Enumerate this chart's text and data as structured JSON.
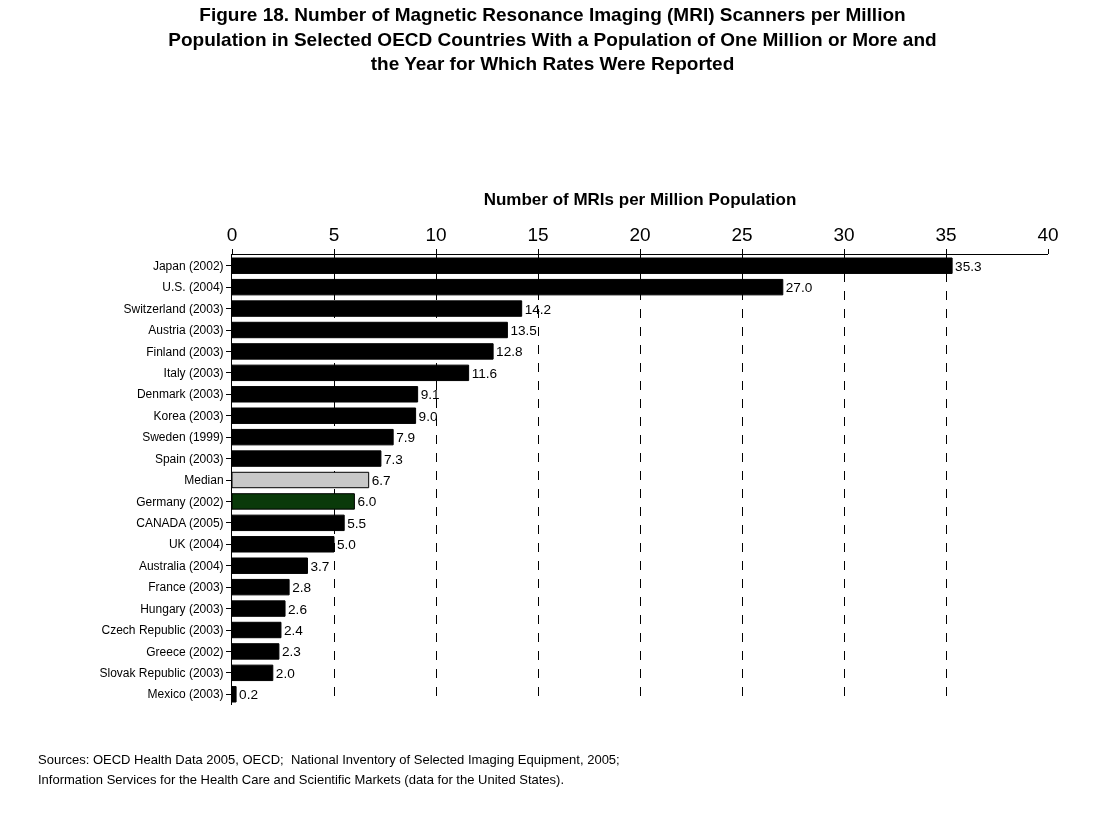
{
  "chart_data": {
    "type": "bar",
    "orientation": "horizontal",
    "title": "Figure 18. Number of Magnetic Resonance Imaging (MRI) Scanners per Million Population in Selected OECD Countries With a Population of One Million or More and the Year for Which Rates Were Reported",
    "xlabel": "Number of MRIs per Million Population",
    "categories": [
      "Japan (2002)",
      "U.S. (2004)",
      "Switzerland (2003)",
      "Austria (2003)",
      "Finland (2003)",
      "Italy (2003)",
      "Denmark (2003)",
      "Korea (2003)",
      "Sweden (1999)",
      "Spain (2003)",
      "Median",
      "Germany (2002)",
      "CANADA (2005)",
      "UK (2004)",
      "Australia (2004)",
      "France (2003)",
      "Hungary (2003)",
      "Czech Republic (2003)",
      "Greece (2002)",
      "Slovak Republic (2003)",
      "Mexico (2003)"
    ],
    "values": [
      35.3,
      27.0,
      14.2,
      13.5,
      12.8,
      11.6,
      9.1,
      9.0,
      7.9,
      7.3,
      6.7,
      6.0,
      5.5,
      5.0,
      3.7,
      2.8,
      2.6,
      2.4,
      2.3,
      2.0,
      0.2
    ],
    "value_labels": [
      "35.3",
      "27.0",
      "14.2",
      "13.5",
      "12.8",
      "11.6",
      "9.1",
      "9.0",
      "7.9",
      "7.3",
      "6.7",
      "6.0",
      "5.5",
      "5.0",
      "3.7",
      "2.8",
      "2.6",
      "2.4",
      "2.3",
      "2.0",
      "0.2"
    ],
    "colors": [
      "#000000",
      "#000000",
      "#000000",
      "#000000",
      "#000000",
      "#000000",
      "#000000",
      "#000000",
      "#000000",
      "#000000",
      "#c8c8c8",
      "#0a3a0a",
      "#000000",
      "#000000",
      "#000000",
      "#000000",
      "#000000",
      "#000000",
      "#000000",
      "#000000",
      "#000000"
    ],
    "xlim": [
      0,
      40
    ],
    "xticks": [
      0,
      5,
      10,
      15,
      20,
      25,
      30,
      35,
      40
    ],
    "grid": "x",
    "line_style": "dashed",
    "legend": false,
    "annotations": [
      "Sources: OECD Health Data 2005, OECD;  National Inventory of Selected Imaging Equipment, 2005;",
      "Information Services for the Health Care and Scientific Markets (data for the United States)."
    ]
  }
}
